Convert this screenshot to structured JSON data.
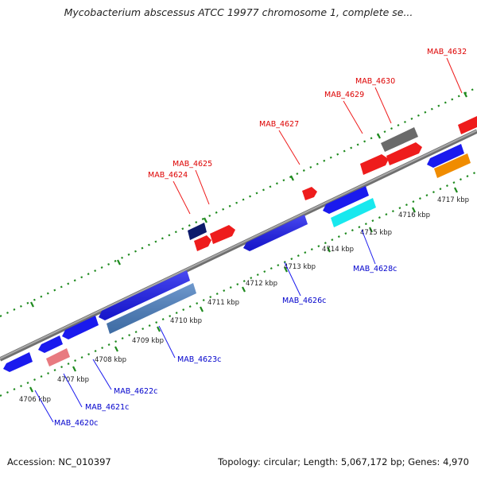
{
  "title": "Mycobacterium abscessus ATCC 19977 chromosome 1, complete se...",
  "footer": {
    "accession": "Accession: NC_010397",
    "summary": "Topology: circular; Length: 5,067,172 bp; Genes: 4,970"
  },
  "ticks": [
    {
      "label": "4706 kbp"
    },
    {
      "label": "4707 kbp"
    },
    {
      "label": "4708 kbp"
    },
    {
      "label": "4709 kbp"
    },
    {
      "label": "4710 kbp"
    },
    {
      "label": "4711 kbp"
    },
    {
      "label": "4712 kbp"
    },
    {
      "label": "4713 kbp"
    },
    {
      "label": "4714 kbp"
    },
    {
      "label": "4715 kbp"
    },
    {
      "label": "4716 kbp"
    },
    {
      "label": "4717 kbp"
    }
  ],
  "forward_genes": [
    {
      "label": "MAB_4624",
      "color": "#0d1a6b"
    },
    {
      "label": "MAB_4625",
      "color": "#ee1c1c"
    },
    {
      "label": "MAB_4627",
      "color": "#ee1c1c"
    },
    {
      "label": "MAB_4629",
      "color": "#ee1c1c"
    },
    {
      "label": "MAB_4630",
      "color": "#ee1c1c"
    },
    {
      "label": "MAB_4632",
      "color": "#ee1c1c"
    }
  ],
  "reverse_genes": [
    {
      "label": "MAB_4620c",
      "color": "#1a1aee"
    },
    {
      "label": "MAB_4621c",
      "color": "#1a1aee"
    },
    {
      "label": "MAB_4622c",
      "color": "#e87a80"
    },
    {
      "label": "MAB_4623c",
      "color": "#4a7fc1"
    },
    {
      "label": "MAB_4626c",
      "color": "#1a1aee"
    },
    {
      "label": "MAB_4628c",
      "color": "#18e8ee"
    }
  ],
  "colors": {
    "backbone": "#8a8a8a",
    "track_dots": "#1e8a1e",
    "forward_label": "#dd0000",
    "reverse_label": "#0000cc",
    "hypothetical": "#6a6a6a",
    "orange": "#f08c00"
  }
}
